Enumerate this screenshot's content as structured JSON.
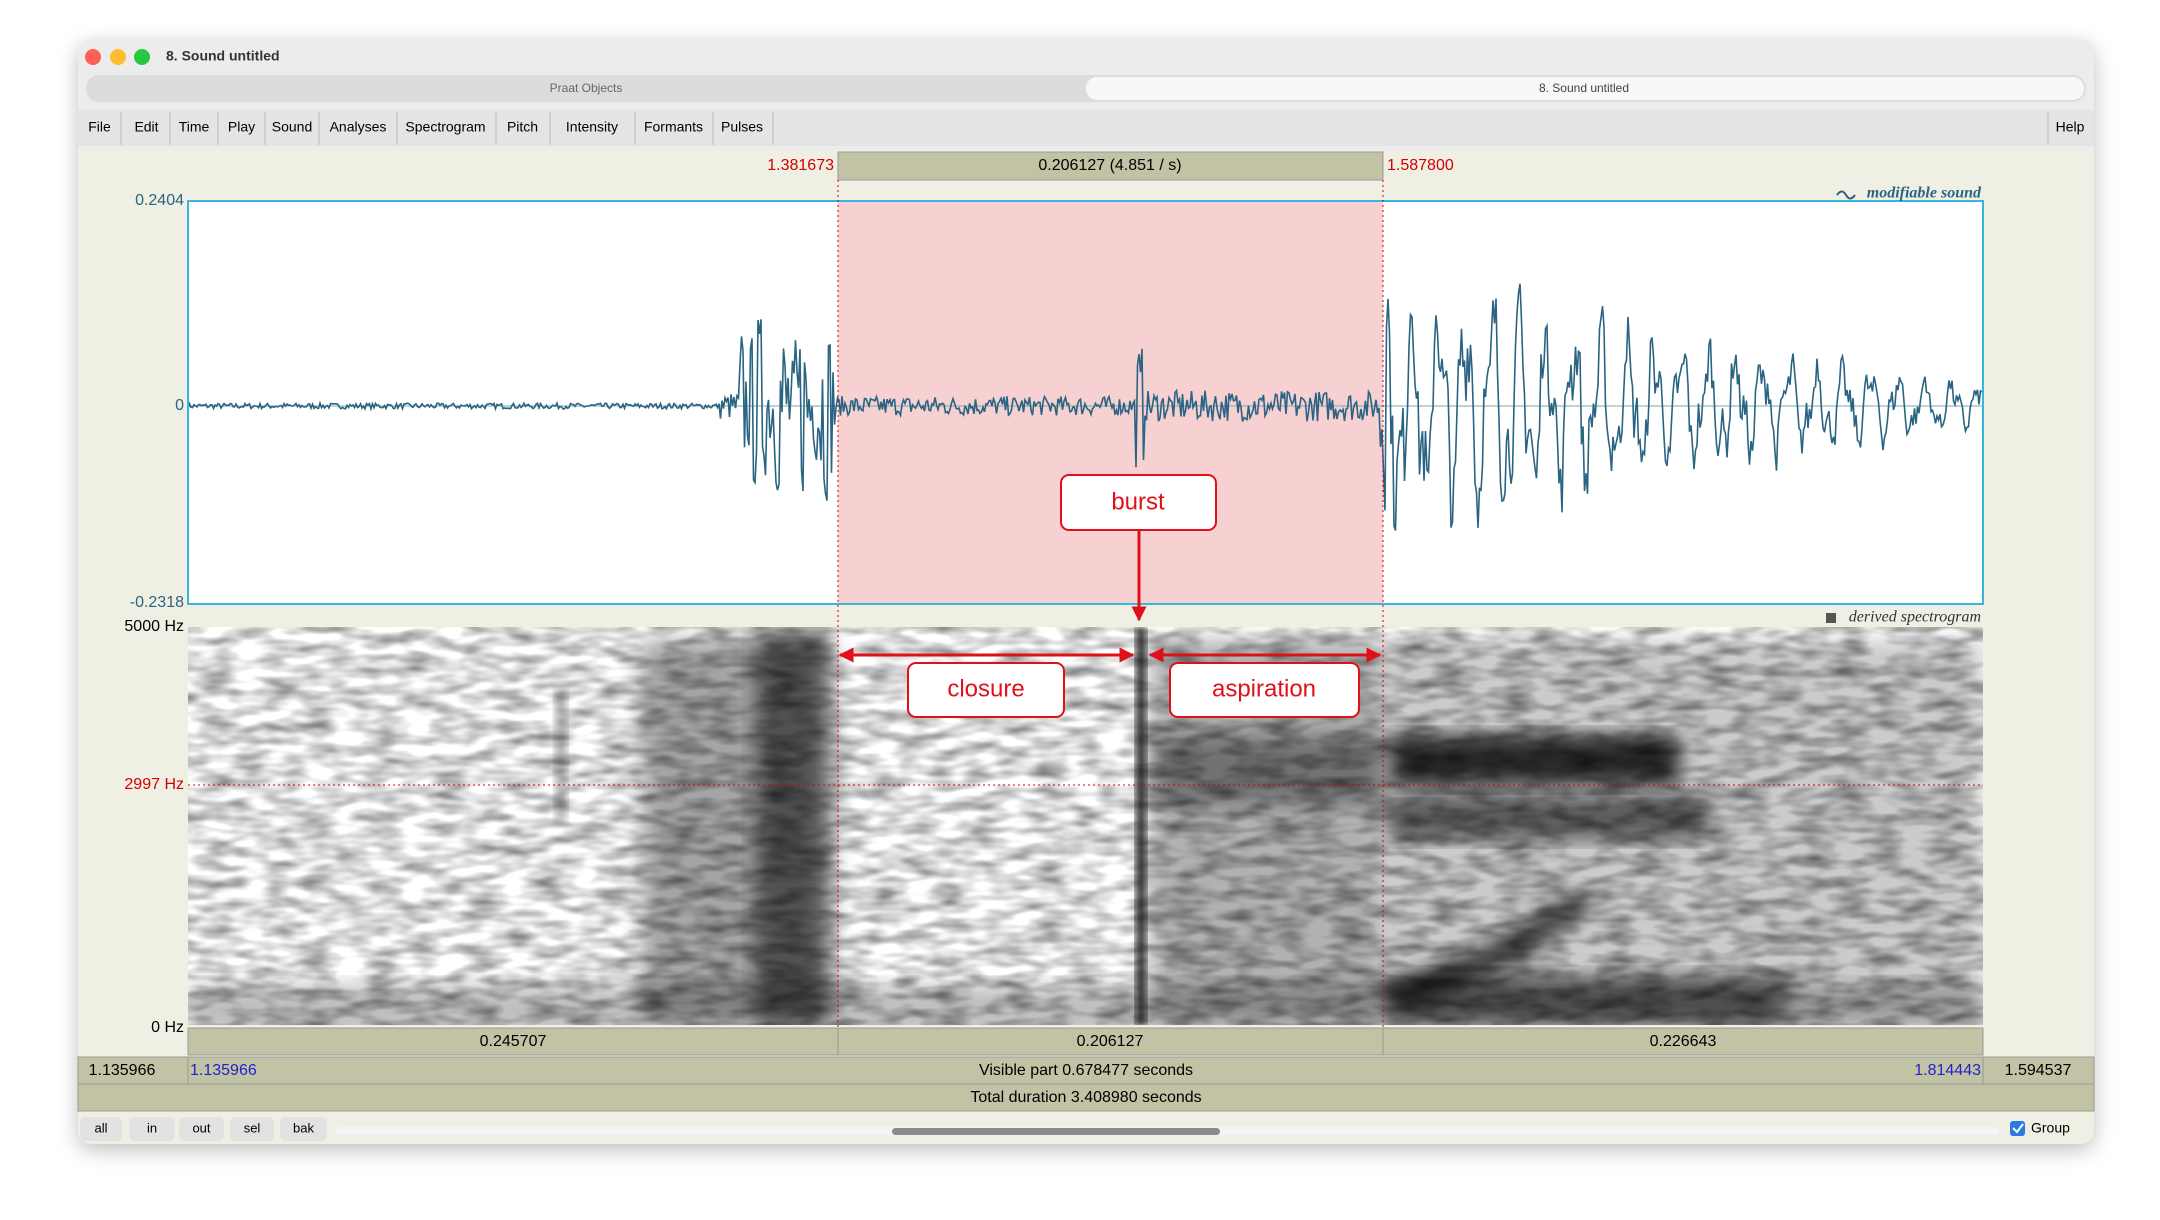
{
  "window": {
    "title": "8. Sound untitled",
    "tabs": [
      "Praat Objects",
      "8. Sound untitled"
    ]
  },
  "menu": [
    "File",
    "Edit",
    "Time",
    "Play",
    "Sound",
    "Analyses",
    "Spectrogram",
    "Pitch",
    "Intensity",
    "Formants",
    "Pulses"
  ],
  "help": "Help",
  "selection": {
    "start": "1.381673",
    "end": "1.587800",
    "length": "0.206127 (4.851  / s)"
  },
  "waveform": {
    "label": "modifiable sound",
    "max": "0.2404",
    "zero": "0",
    "min": "-0.2318"
  },
  "spectrogram": {
    "label": "derived spectrogram",
    "max": "5000 Hz",
    "cursor": "2997 Hz",
    "min": "0 Hz"
  },
  "durations": [
    "0.245707",
    "0.206127",
    "0.226643"
  ],
  "window_start": "1.135966",
  "visible_start": "1.135966",
  "visible_part": "Visible part 0.678477 seconds",
  "visible_end": "1.814443",
  "window_end": "1.594537",
  "total": "Total duration 3.408980 seconds",
  "buttons": [
    "all",
    "in",
    "out",
    "sel",
    "bak"
  ],
  "group": "Group",
  "annotations": {
    "burst": "burst",
    "closure": "closure",
    "aspiration": "aspiration"
  }
}
